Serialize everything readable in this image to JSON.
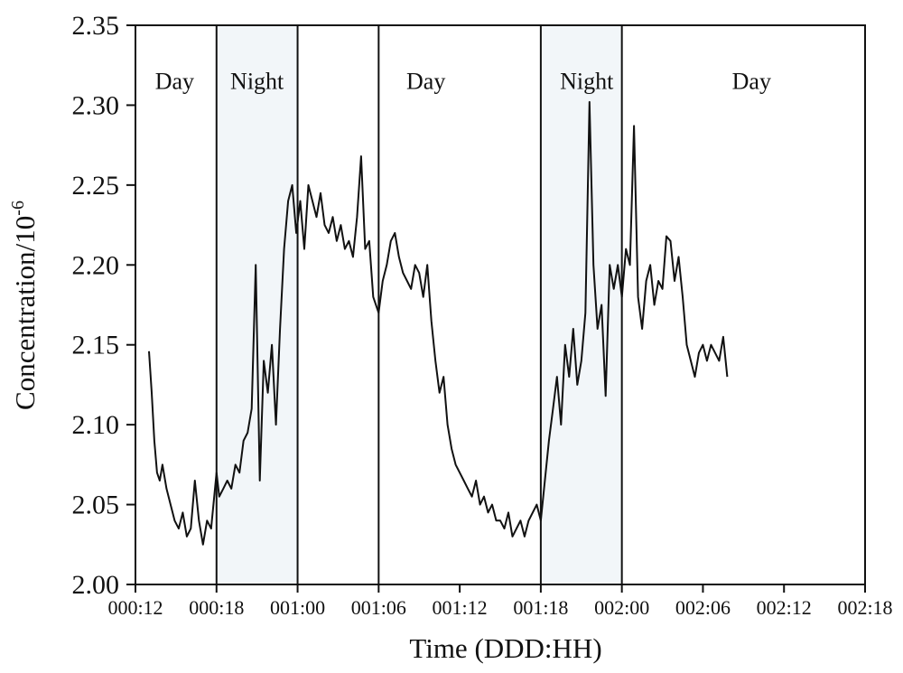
{
  "chart_data": {
    "type": "line",
    "title": "",
    "xlabel": "Time (DDD:HH)",
    "ylabel_main": "Concentration/10",
    "ylabel_exponent": "-6",
    "x_unit": "hours",
    "xlim": [
      12,
      66
    ],
    "ylim": [
      2.0,
      2.35
    ],
    "x_tick_values": [
      12,
      18,
      24,
      30,
      36,
      42,
      48,
      54,
      60,
      66
    ],
    "x_tick_labels": [
      "000:12",
      "000:18",
      "001:00",
      "001:06",
      "001:12",
      "001:18",
      "002:00",
      "002:06",
      "002:12",
      "002:18"
    ],
    "y_tick_values": [
      2.0,
      2.05,
      2.1,
      2.15,
      2.2,
      2.25,
      2.3,
      2.35
    ],
    "y_tick_labels": [
      "2.00",
      "2.05",
      "2.10",
      "2.15",
      "2.20",
      "2.25",
      "2.30",
      "2.35"
    ],
    "grid": false,
    "band_boundaries": [
      18,
      24,
      30,
      42,
      48
    ],
    "bands": [
      {
        "label": "Day",
        "x0": 12,
        "x1": 18,
        "shaded": false
      },
      {
        "label": "Night",
        "x0": 18,
        "x1": 24,
        "shaded": true
      },
      {
        "label": "Day",
        "x0": 24,
        "x1": 42,
        "shaded": false
      },
      {
        "label": "Night",
        "x0": 42,
        "x1": 48,
        "shaded": true
      },
      {
        "label": "Day",
        "x0": 48,
        "x1": 66,
        "shaded": false
      }
    ],
    "band_label_points": [
      {
        "text": "Day",
        "x": 14.9,
        "y": 2.31
      },
      {
        "text": "Night",
        "x": 21.0,
        "y": 2.31
      },
      {
        "text": "Day",
        "x": 33.5,
        "y": 2.31
      },
      {
        "text": "Night",
        "x": 45.4,
        "y": 2.31
      },
      {
        "text": "Day",
        "x": 57.6,
        "y": 2.31
      }
    ],
    "colors": {
      "line": "#111111",
      "night_fill": "#f2f6f9",
      "axis": "#111111"
    },
    "series": [
      {
        "x": [
          13.0,
          13.2,
          13.4,
          13.6,
          13.8,
          14.0,
          14.3,
          14.6,
          14.9,
          15.2,
          15.5,
          15.8,
          16.1,
          16.4,
          16.7,
          17.0,
          17.3,
          17.6,
          18.0,
          18.2,
          18.5,
          18.8,
          19.1,
          19.4,
          19.7,
          20.0,
          20.3,
          20.6,
          20.9,
          21.2,
          21.5,
          21.8,
          22.1,
          22.4,
          22.7,
          23.0,
          23.3,
          23.6,
          23.9,
          24.2,
          24.5,
          24.8,
          25.1,
          25.4,
          25.7,
          26.0,
          26.3,
          26.6,
          26.9,
          27.2,
          27.5,
          27.8,
          28.1,
          28.4,
          28.7,
          29.0,
          29.3,
          29.6,
          30.0,
          30.3,
          30.6,
          30.9,
          31.2,
          31.5,
          31.8,
          32.1,
          32.4,
          32.7,
          33.0,
          33.3,
          33.6,
          33.9,
          34.2,
          34.5,
          34.8,
          35.1,
          35.4,
          35.7,
          36.0,
          36.3,
          36.6,
          36.9,
          37.2,
          37.5,
          37.8,
          38.1,
          38.4,
          38.7,
          39.0,
          39.3,
          39.6,
          39.9,
          40.2,
          40.5,
          40.8,
          41.1,
          41.4,
          41.7,
          42.0,
          42.3,
          42.6,
          42.9,
          43.2,
          43.5,
          43.8,
          44.1,
          44.4,
          44.7,
          45.0,
          45.3,
          45.6,
          45.9,
          46.2,
          46.5,
          46.8,
          47.1,
          47.4,
          47.7,
          48.0,
          48.3,
          48.6,
          48.9,
          49.2,
          49.5,
          49.8,
          50.1,
          50.4,
          50.7,
          51.0,
          51.3,
          51.6,
          51.9,
          52.2,
          52.5,
          52.8,
          53.1,
          53.4,
          53.7,
          54.0,
          54.3,
          54.6,
          54.9,
          55.2,
          55.5,
          55.8
        ],
        "values": [
          2.146,
          2.12,
          2.09,
          2.07,
          2.065,
          2.075,
          2.06,
          2.05,
          2.04,
          2.035,
          2.045,
          2.03,
          2.035,
          2.065,
          2.04,
          2.025,
          2.04,
          2.035,
          2.07,
          2.055,
          2.06,
          2.065,
          2.06,
          2.075,
          2.07,
          2.09,
          2.095,
          2.11,
          2.2,
          2.065,
          2.14,
          2.12,
          2.15,
          2.1,
          2.16,
          2.21,
          2.24,
          2.25,
          2.22,
          2.24,
          2.21,
          2.25,
          2.24,
          2.23,
          2.245,
          2.225,
          2.22,
          2.23,
          2.215,
          2.225,
          2.21,
          2.215,
          2.205,
          2.23,
          2.268,
          2.21,
          2.215,
          2.18,
          2.17,
          2.19,
          2.2,
          2.215,
          2.22,
          2.205,
          2.195,
          2.19,
          2.185,
          2.2,
          2.195,
          2.18,
          2.2,
          2.165,
          2.14,
          2.12,
          2.13,
          2.1,
          2.085,
          2.075,
          2.07,
          2.065,
          2.06,
          2.055,
          2.065,
          2.05,
          2.055,
          2.045,
          2.05,
          2.04,
          2.04,
          2.035,
          2.045,
          2.03,
          2.035,
          2.04,
          2.03,
          2.04,
          2.045,
          2.05,
          2.04,
          2.065,
          2.09,
          2.11,
          2.13,
          2.1,
          2.15,
          2.13,
          2.16,
          2.125,
          2.14,
          2.17,
          2.302,
          2.2,
          2.16,
          2.175,
          2.118,
          2.2,
          2.185,
          2.2,
          2.18,
          2.21,
          2.2,
          2.287,
          2.18,
          2.16,
          2.19,
          2.2,
          2.175,
          2.19,
          2.185,
          2.218,
          2.215,
          2.19,
          2.205,
          2.18,
          2.15,
          2.14,
          2.13,
          2.145,
          2.15,
          2.14,
          2.15,
          2.145,
          2.14,
          2.155,
          2.13
        ]
      }
    ]
  }
}
